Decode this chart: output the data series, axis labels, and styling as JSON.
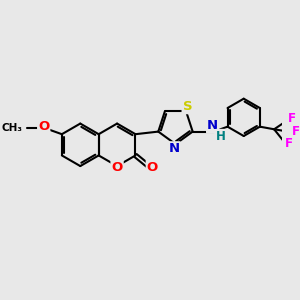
{
  "background_color": "#e8e8e8",
  "bond_color": "#000000",
  "bond_width": 1.5,
  "atom_colors": {
    "O": "#ff0000",
    "N": "#0000cc",
    "S": "#cccc00",
    "F": "#ff00ff",
    "H": "#008080",
    "C": "#000000"
  },
  "figsize": [
    3.0,
    3.0
  ],
  "dpi": 100
}
